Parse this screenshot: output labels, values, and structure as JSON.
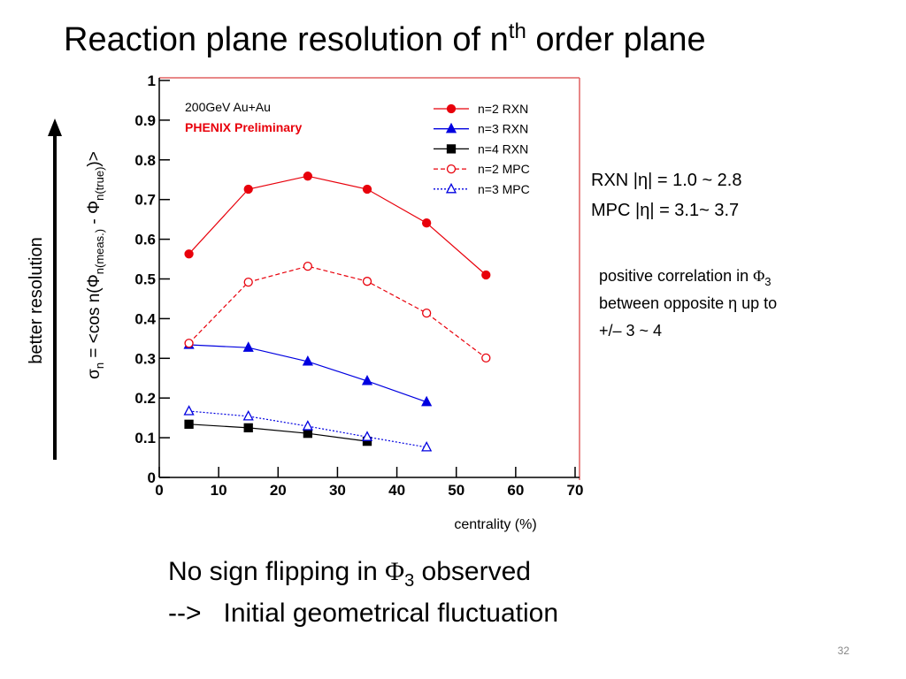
{
  "slide": {
    "title": [
      "Reaction plane resolution of n",
      "th",
      " order plane"
    ],
    "side_note_1": "RXN  |η| = 1.0 ~ 2.8",
    "side_note_2": "MPC  |η| = 3.1~ 3.7",
    "correlation_note": [
      [
        "positive correlation in ",
        "Φ",
        "3"
      ],
      [
        "between opposite η up to"
      ],
      [
        "+/– 3 ~ 4"
      ]
    ],
    "arrow_label": "better resolution",
    "conclusion_1": [
      "No sign flipping in ",
      "Φ",
      "3",
      " observed"
    ],
    "conclusion_2": "-->   Initial geometrical fluctuation",
    "page_number": "32"
  },
  "chart_data": {
    "type": "line",
    "annotations": [
      "200GeV Au+Au",
      "PHENIX Preliminary"
    ],
    "x_label": "centrality (%)",
    "y_label": [
      "σ",
      "n",
      " = <cos n(Φ",
      "n(meas.)",
      " - Φ",
      "n(true)",
      ")>"
    ],
    "xlim": [
      0,
      70
    ],
    "xticks": [
      0,
      10,
      20,
      30,
      40,
      50,
      60,
      70
    ],
    "ylim": [
      0,
      1
    ],
    "yticks": [
      0,
      0.1,
      0.2,
      0.3,
      0.4,
      0.5,
      0.6,
      0.7,
      0.8,
      0.9,
      1
    ],
    "legend": "top-right",
    "series": [
      {
        "name": "n=2 RXN",
        "color": "#e8000b",
        "marker": "circle",
        "filled": true,
        "dash": "solid",
        "x": [
          5,
          15,
          25,
          35,
          45,
          55
        ],
        "values": [
          0.563,
          0.726,
          0.759,
          0.726,
          0.641,
          0.51
        ]
      },
      {
        "name": "n=3 RXN",
        "color": "#0000e0",
        "marker": "triangle",
        "filled": true,
        "dash": "solid",
        "x": [
          5,
          15,
          25,
          35,
          45
        ],
        "values": [
          0.334,
          0.327,
          0.292,
          0.243,
          0.19
        ]
      },
      {
        "name": "n=4 RXN",
        "color": "#000000",
        "marker": "square",
        "filled": true,
        "dash": "solid",
        "x": [
          5,
          15,
          25,
          35
        ],
        "values": [
          0.134,
          0.125,
          0.111,
          0.091
        ]
      },
      {
        "name": "n=2 MPC",
        "color": "#e8000b",
        "marker": "circle",
        "filled": false,
        "dash": "dashed",
        "x": [
          5,
          15,
          25,
          35,
          45,
          55
        ],
        "values": [
          0.338,
          0.492,
          0.532,
          0.494,
          0.414,
          0.301
        ]
      },
      {
        "name": "n=3 MPC",
        "color": "#0000e0",
        "marker": "triangle",
        "filled": false,
        "dash": "dotted",
        "x": [
          5,
          15,
          25,
          35,
          45
        ],
        "values": [
          0.167,
          0.154,
          0.129,
          0.102,
          0.076
        ]
      }
    ]
  }
}
